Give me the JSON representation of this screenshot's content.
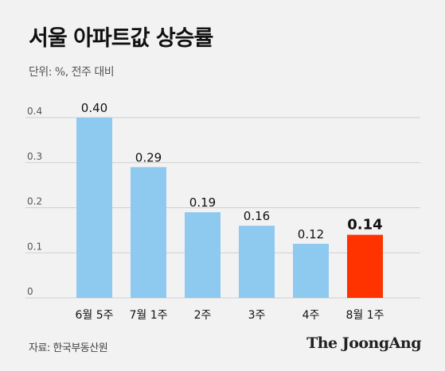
{
  "header": {
    "title": "서울 아파트값 상승률",
    "unit": "단위: %, 전주 대비"
  },
  "footer": {
    "source": "자료: 한국부동산원",
    "logo": "The JoongAng"
  },
  "colors": {
    "bar": "#8ec9ef",
    "highlight": "#ff3300",
    "grid": "#cfcfcf",
    "axis_text": "#555555"
  },
  "chart_data": {
    "type": "bar",
    "categories": [
      "6월 5주",
      "7월 1주",
      "2주",
      "3주",
      "4주",
      "8월 1주"
    ],
    "values": [
      0.4,
      0.29,
      0.19,
      0.16,
      0.12,
      0.14
    ],
    "value_labels": [
      "0.40",
      "0.29",
      "0.19",
      "0.16",
      "0.12",
      "0.14"
    ],
    "highlight_index": 5,
    "yticks": [
      0,
      0.1,
      0.2,
      0.3,
      0.4
    ],
    "ytick_labels": [
      "0",
      "0.1",
      "0.2",
      "0.3",
      "0.4"
    ],
    "ylim": [
      0,
      0.4
    ],
    "grid": true,
    "title": "서울 아파트값 상승률",
    "xlabel": "",
    "ylabel": ""
  }
}
